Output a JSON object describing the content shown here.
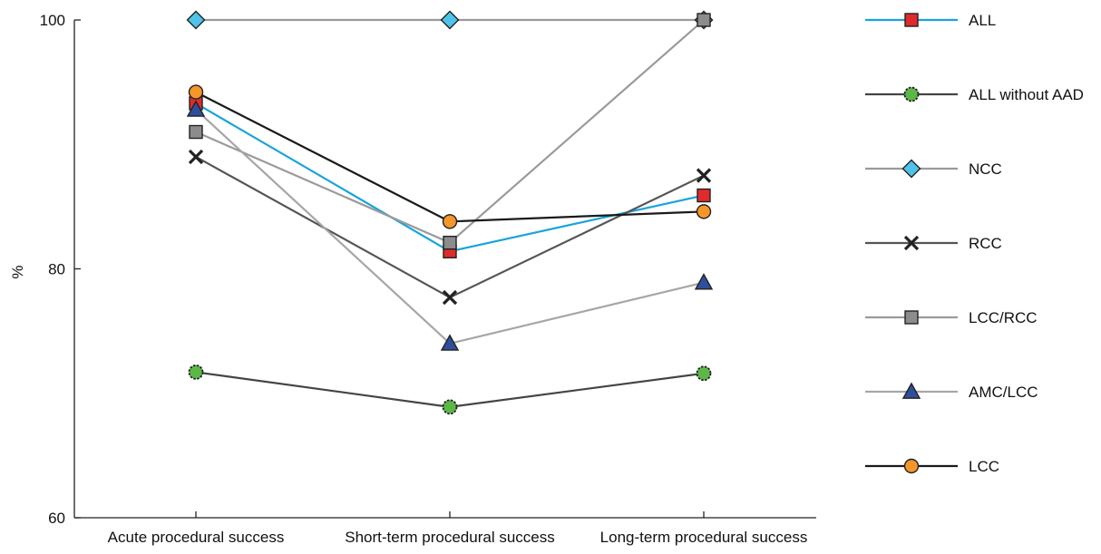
{
  "chart_data": {
    "type": "line",
    "title": "",
    "xlabel": "",
    "ylabel": "%",
    "ylim": [
      60,
      100
    ],
    "yticks": [
      "60",
      "80",
      "100"
    ],
    "categories": [
      "Acute procedural success",
      "Short-term procedural success",
      "Long-term procedural success"
    ],
    "legend_position": "right",
    "grid": false,
    "series": [
      {
        "name": "ALL",
        "values": [
          93.3,
          81.4,
          85.9
        ],
        "line_color": "#1aa3dc",
        "marker": "square",
        "marker_color": "#e02b2b"
      },
      {
        "name": "ALL without AAD",
        "values": [
          71.7,
          68.9,
          71.6
        ],
        "line_color": "#444444",
        "marker": "circle-dashed",
        "marker_color": "#5cb846"
      },
      {
        "name": "NCC",
        "values": [
          100,
          100,
          100
        ],
        "line_color": "#9a9a9a",
        "marker": "diamond",
        "marker_color": "#4fc3ea"
      },
      {
        "name": "RCC",
        "values": [
          89.0,
          77.7,
          87.5
        ],
        "line_color": "#555555",
        "marker": "x",
        "marker_color": "#222222"
      },
      {
        "name": "LCC/RCC",
        "values": [
          91.0,
          82.1,
          100
        ],
        "line_color": "#9a9a9a",
        "marker": "square",
        "marker_color": "#8c8c8c"
      },
      {
        "name": "AMC/LCC",
        "values": [
          92.8,
          74.0,
          78.9
        ],
        "line_color": "#a6a6a6",
        "marker": "triangle",
        "marker_color": "#2e4f9c"
      },
      {
        "name": "LCC",
        "values": [
          94.2,
          83.8,
          84.6
        ],
        "line_color": "#1a1a1a",
        "marker": "circle",
        "marker_color": "#f5962a"
      }
    ]
  }
}
